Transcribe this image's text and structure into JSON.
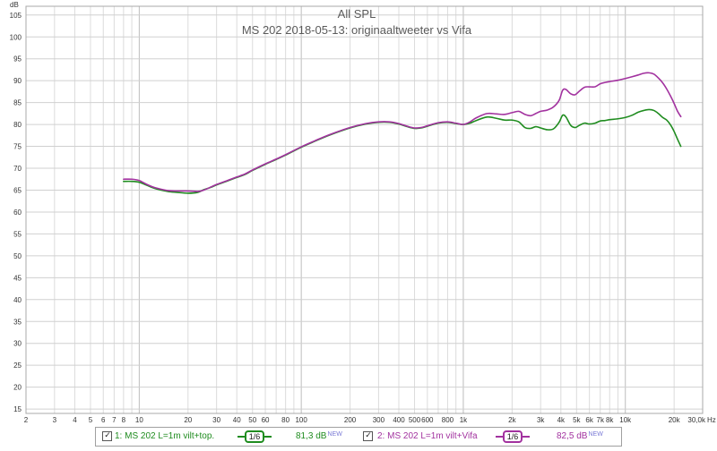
{
  "chart_data": {
    "type": "line",
    "title": "All SPL",
    "subtitle": "MS 202 2018-05-13: originaaltweeter vs Vifa",
    "ylabel": "dB",
    "xunit": "Hz",
    "xscale": "log",
    "xlim": [
      2,
      30000
    ],
    "ylim": [
      14,
      107
    ],
    "grid": true,
    "legend_position": "bottom",
    "y_ticks": [
      15,
      20,
      25,
      30,
      35,
      40,
      45,
      50,
      55,
      60,
      65,
      70,
      75,
      80,
      85,
      90,
      95,
      100,
      105
    ],
    "x_ticks": [
      {
        "value": 2,
        "label": "2"
      },
      {
        "value": 3,
        "label": "3"
      },
      {
        "value": 4,
        "label": "4"
      },
      {
        "value": 5,
        "label": "5"
      },
      {
        "value": 6,
        "label": "6"
      },
      {
        "value": 7,
        "label": "7"
      },
      {
        "value": 8,
        "label": "8"
      },
      {
        "value": 10,
        "label": "10"
      },
      {
        "value": 20,
        "label": "20"
      },
      {
        "value": 30,
        "label": "30"
      },
      {
        "value": 40,
        "label": "40"
      },
      {
        "value": 50,
        "label": "50"
      },
      {
        "value": 60,
        "label": "60"
      },
      {
        "value": 80,
        "label": "80"
      },
      {
        "value": 100,
        "label": "100"
      },
      {
        "value": 200,
        "label": "200"
      },
      {
        "value": 300,
        "label": "300"
      },
      {
        "value": 400,
        "label": "400"
      },
      {
        "value": 500,
        "label": "500"
      },
      {
        "value": 600,
        "label": "600"
      },
      {
        "value": 800,
        "label": "800"
      },
      {
        "value": 1000,
        "label": "1k"
      },
      {
        "value": 2000,
        "label": "2k"
      },
      {
        "value": 3000,
        "label": "3k"
      },
      {
        "value": 4000,
        "label": "4k"
      },
      {
        "value": 5000,
        "label": "5k"
      },
      {
        "value": 6000,
        "label": "6k"
      },
      {
        "value": 7000,
        "label": "7k"
      },
      {
        "value": 8000,
        "label": "8k"
      },
      {
        "value": 10000,
        "label": "10k"
      },
      {
        "value": 20000,
        "label": "20k"
      },
      {
        "value": 30000,
        "label": "30,0k"
      }
    ],
    "series": [
      {
        "name": "1: MS 202 L=1m vilt+top.",
        "color": "#1f8c1f",
        "smoothing": "1/6",
        "level": "81,3 dB",
        "badge": "NEW",
        "x": [
          8,
          9,
          10,
          11,
          12,
          13,
          15,
          17,
          20,
          23,
          25,
          28,
          30,
          35,
          40,
          45,
          50,
          60,
          70,
          80,
          100,
          120,
          150,
          200,
          250,
          300,
          350,
          400,
          450,
          500,
          550,
          600,
          700,
          800,
          900,
          1000,
          1100,
          1200,
          1400,
          1600,
          1800,
          2000,
          2200,
          2400,
          2600,
          2800,
          3000,
          3300,
          3600,
          3900,
          4100,
          4300,
          4600,
          4900,
          5200,
          5600,
          6000,
          6500,
          7000,
          7500,
          8000,
          9000,
          10000,
          11000,
          12000,
          13000,
          14000,
          15000,
          16000,
          17000,
          18000,
          19000,
          20000,
          21000,
          22000
        ],
        "y": [
          67.0,
          67.0,
          66.8,
          66.2,
          65.6,
          65.2,
          64.7,
          64.5,
          64.3,
          64.5,
          65.1,
          65.7,
          66.2,
          67.1,
          67.9,
          68.6,
          69.5,
          70.9,
          72.0,
          73.0,
          74.8,
          76.1,
          77.6,
          79.2,
          80.1,
          80.5,
          80.5,
          80.1,
          79.5,
          79.1,
          79.2,
          79.6,
          80.3,
          80.5,
          80.2,
          80.0,
          80.3,
          80.9,
          81.7,
          81.4,
          81.0,
          81.0,
          80.6,
          79.3,
          79.1,
          79.5,
          79.2,
          78.8,
          79.0,
          80.5,
          82.1,
          81.7,
          79.8,
          79.3,
          79.8,
          80.3,
          80.1,
          80.3,
          80.8,
          80.9,
          81.1,
          81.3,
          81.6,
          82.1,
          82.8,
          83.2,
          83.4,
          83.2,
          82.5,
          81.6,
          81.0,
          79.9,
          78.4,
          76.6,
          75.0
        ]
      },
      {
        "name": "2: MS 202 L=1m vilt+Vifa",
        "color": "#a2329f",
        "smoothing": "1/6",
        "level": "82,5 dB",
        "badge": "NEW",
        "x": [
          8,
          9,
          10,
          11,
          12,
          13,
          15,
          17,
          20,
          23,
          25,
          28,
          30,
          35,
          40,
          45,
          50,
          60,
          70,
          80,
          100,
          120,
          150,
          200,
          250,
          300,
          350,
          400,
          450,
          500,
          550,
          600,
          700,
          800,
          900,
          1000,
          1100,
          1200,
          1400,
          1600,
          1800,
          2000,
          2200,
          2400,
          2600,
          2800,
          3000,
          3300,
          3600,
          3900,
          4100,
          4300,
          4600,
          4900,
          5200,
          5600,
          6000,
          6500,
          7000,
          7500,
          8000,
          9000,
          10000,
          11000,
          12000,
          13000,
          14000,
          15000,
          16000,
          17000,
          18000,
          19000,
          20000,
          21000,
          22000
        ],
        "y": [
          67.5,
          67.5,
          67.2,
          66.4,
          65.8,
          65.4,
          64.9,
          64.8,
          64.8,
          64.7,
          65.0,
          65.8,
          66.3,
          67.2,
          68.0,
          68.7,
          69.6,
          71.0,
          72.1,
          73.1,
          74.9,
          76.2,
          77.7,
          79.3,
          80.2,
          80.6,
          80.6,
          80.2,
          79.6,
          79.2,
          79.3,
          79.7,
          80.4,
          80.6,
          80.3,
          80.0,
          80.6,
          81.5,
          82.5,
          82.4,
          82.3,
          82.7,
          83.0,
          82.3,
          82.0,
          82.5,
          83.0,
          83.3,
          84.0,
          85.5,
          87.8,
          88.0,
          87.0,
          86.8,
          87.6,
          88.5,
          88.6,
          88.6,
          89.3,
          89.6,
          89.8,
          90.1,
          90.5,
          90.9,
          91.3,
          91.7,
          91.8,
          91.5,
          90.6,
          89.5,
          88.1,
          86.5,
          84.8,
          83.0,
          81.8
        ]
      }
    ]
  }
}
